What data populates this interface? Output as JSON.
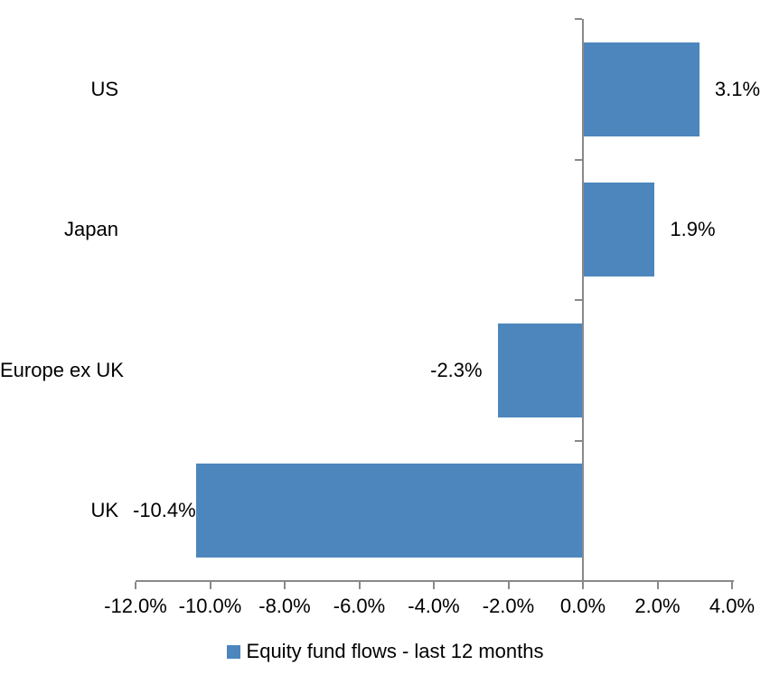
{
  "chart_data": {
    "type": "bar",
    "orientation": "horizontal",
    "title": "",
    "xlabel": "",
    "ylabel": "",
    "categories": [
      "US",
      "Japan",
      "Europe ex UK",
      "UK"
    ],
    "series": [
      {
        "name": "Equity fund flows - last 12 months",
        "values": [
          3.1,
          1.9,
          -2.3,
          -10.4
        ],
        "data_labels": [
          "3.1%",
          "1.9%",
          "-2.3%",
          "-10.4%"
        ]
      }
    ],
    "xlim": [
      -12,
      4
    ],
    "x_tick_values": [
      -12,
      -10,
      -8,
      -6,
      -4,
      -2,
      0,
      2,
      4
    ],
    "x_tick_labels": [
      "-12.0%",
      "-10.0%",
      "-8.0%",
      "-6.0%",
      "-4.0%",
      "-2.0%",
      "0.0%",
      "2.0%",
      "4.0%"
    ],
    "grid": false,
    "data_label_position": "outside-end",
    "legend": {
      "position": "bottom",
      "items": [
        {
          "label": "Equity fund flows - last 12 months",
          "color": "#4D86BD"
        }
      ]
    },
    "colors": {
      "bar": "#4D86BD",
      "axis": "#898989",
      "text": "#000000",
      "background": "#FFFFFF"
    }
  }
}
